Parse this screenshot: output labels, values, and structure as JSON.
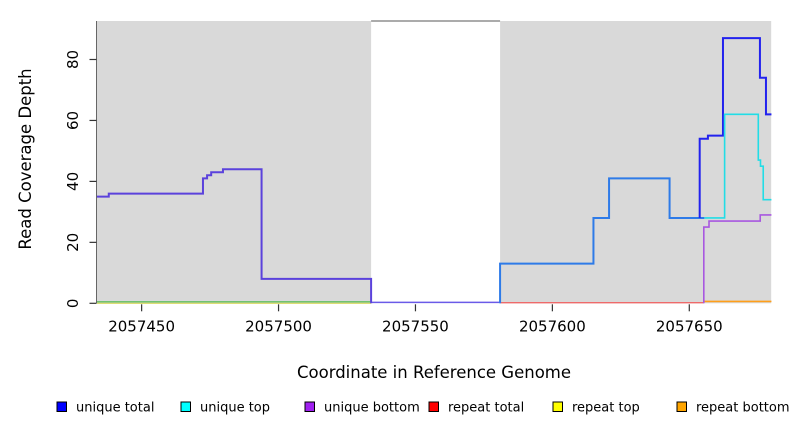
{
  "figure": {
    "background": "#ffffff",
    "plot_background": "#ffffff",
    "region_fill": "#d9d9d9"
  },
  "chart_data": {
    "type": "line",
    "title": "",
    "xlabel": "Coordinate in Reference Genome",
    "ylabel": "Read Coverage Depth",
    "xlim": [
      2057433.7,
      2057681.3
    ],
    "ylim": [
      0,
      94.6
    ],
    "grid": false,
    "x_ticks": [
      2057450,
      2057500,
      2057550,
      2057600,
      2057650
    ],
    "y_ticks": [
      0,
      20,
      40,
      60,
      80
    ],
    "background_regions": [
      {
        "name": "sequenced-region-left",
        "x1": 2057433.7,
        "x2": 2057533.8
      },
      {
        "name": "sequenced-region-right",
        "x1": 2057580.9,
        "x2": 2057679.9
      }
    ],
    "gap_region": {
      "x1": 2057533.8,
      "x2": 2057580.9,
      "top_line_color": "#8f8f8f"
    },
    "legend_position": "bottom",
    "legend": [
      {
        "label": "unique total",
        "color": "#0000ff"
      },
      {
        "label": "unique top",
        "color": "#00ffff"
      },
      {
        "label": "unique bottom",
        "color": "#a020f0"
      },
      {
        "label": "repeat total",
        "color": "#ff0000"
      },
      {
        "label": "repeat top",
        "color": "#ffff00"
      },
      {
        "label": "repeat bottom",
        "color": "#ffa500"
      }
    ],
    "series": [
      {
        "name": "repeat-top-baseline-left",
        "color": "#d8d860",
        "width": 1.2,
        "steps": [
          [
            2057433.7,
            0
          ],
          [
            2057533.8,
            0
          ]
        ]
      },
      {
        "name": "unique-top-baseline-left",
        "color": "#62be62",
        "width": 1.4,
        "steps": [
          [
            2057433.7,
            0.5
          ],
          [
            2057533.8,
            0.5
          ]
        ]
      },
      {
        "name": "repeat-total-baseline",
        "color": "#ee6a6a",
        "width": 1.3,
        "steps": [
          [
            2057580.9,
            0.2
          ],
          [
            2057655.3,
            0.2
          ]
        ]
      },
      {
        "name": "repeat-bottom-baseline-right",
        "color": "#ff9f1a",
        "width": 1.6,
        "steps": [
          [
            2057655.3,
            0.6
          ],
          [
            2057680,
            0.6
          ]
        ]
      },
      {
        "name": "unique-total-zero-gap",
        "color": "#6a5ae8",
        "width": 1.6,
        "steps": [
          [
            2057533.8,
            0.3
          ],
          [
            2057581,
            0.3
          ]
        ]
      },
      {
        "name": "unique-total-plus-bottom-left",
        "color": "#5b42dc",
        "width": 2,
        "steps": [
          [
            2057433.7,
            35
          ],
          [
            2057438,
            36
          ],
          [
            2057472.4,
            41
          ],
          [
            2057473.9,
            42
          ],
          [
            2057475.4,
            43
          ],
          [
            2057479.7,
            44
          ],
          [
            2057493.8,
            8
          ],
          [
            2057533.8,
            0
          ]
        ]
      },
      {
        "name": "unique-total-plus-top-right",
        "color": "#2e7be8",
        "width": 2,
        "steps": [
          [
            2057580.9,
            0
          ],
          [
            2057580.9,
            13
          ],
          [
            2057615,
            28
          ],
          [
            2057620.7,
            41
          ],
          [
            2057642.8,
            28
          ],
          [
            2057655.5,
            28
          ]
        ]
      },
      {
        "name": "unique-total-peak",
        "color": "#2222ee",
        "width": 2,
        "steps": [
          [
            2057653.8,
            28
          ],
          [
            2057653.8,
            54
          ],
          [
            2057656.8,
            55
          ],
          [
            2057662.3,
            87
          ],
          [
            2057675.8,
            74
          ],
          [
            2057678,
            62
          ],
          [
            2057680,
            62
          ]
        ]
      },
      {
        "name": "unique-top-right",
        "color": "#22dde6",
        "width": 1.6,
        "steps": [
          [
            2057655.5,
            28
          ],
          [
            2057662.9,
            62
          ],
          [
            2057675.2,
            47
          ],
          [
            2057676,
            45
          ],
          [
            2057677,
            34
          ],
          [
            2057680,
            34
          ]
        ]
      },
      {
        "name": "unique-bottom-right",
        "color": "#a858e0",
        "width": 1.6,
        "steps": [
          [
            2057655.3,
            0
          ],
          [
            2057655.3,
            25
          ],
          [
            2057657.2,
            27
          ],
          [
            2057675.9,
            29
          ],
          [
            2057680,
            29
          ]
        ]
      }
    ]
  }
}
